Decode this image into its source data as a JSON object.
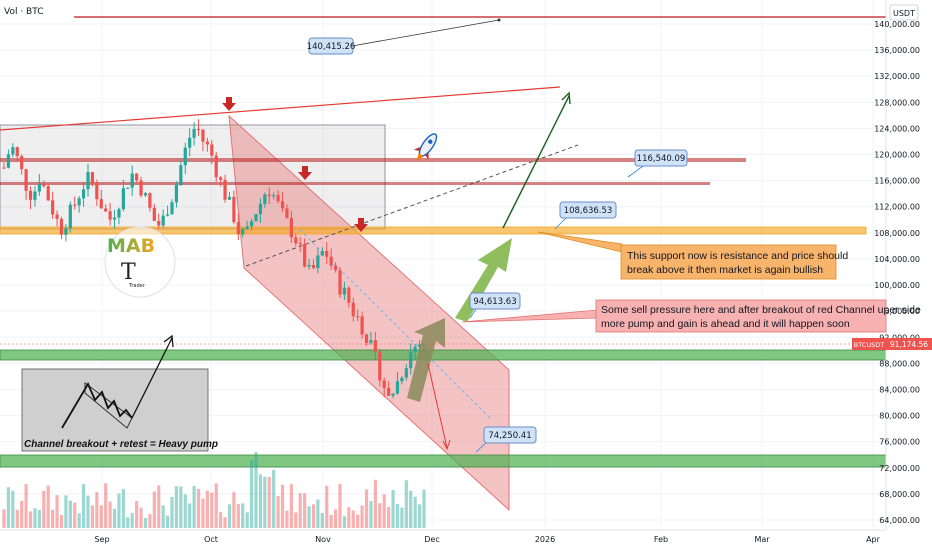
{
  "header": {
    "title": "Vol · BTC",
    "currency": "USDT"
  },
  "colors": {
    "up": "#26a69a",
    "down": "#ef5350",
    "channel": "#e57373",
    "support_band": "#f5a623",
    "green_band": "#4caf50",
    "resistance_line": "#b71c1c",
    "callout_blue": "#cfe2f7",
    "callout_orange": "#f8b46a",
    "callout_red": "#f7b1b1"
  },
  "chart_data": {
    "type": "candlestick",
    "symbol": "BTCUSDT",
    "last_price": "91,174.56",
    "ylim": [
      64000,
      142000
    ],
    "y_ticks": [
      140000,
      136000,
      132000,
      128000,
      124000,
      120000,
      116000,
      112000,
      108000,
      104000,
      100000,
      96000,
      92000,
      88000,
      84000,
      80000,
      76000,
      72000,
      68000,
      64000
    ],
    "y_tick_labels": [
      "140,000.00",
      "136,000.00",
      "132,000.00",
      "128,000.00",
      "124,000.00",
      "120,000.00",
      "116,000.00",
      "112,000.00",
      "108,000.00",
      "104,000.00",
      "100,000.00",
      "96,000.00",
      "92,000.00",
      "88,000.00",
      "84,000.00",
      "80,000.00",
      "76,000.00",
      "72,000.00",
      "68,000.00",
      "64,000.00"
    ],
    "x_labels": [
      "Sep",
      "Oct",
      "Nov",
      "Dec",
      "2026",
      "Feb",
      "Mar",
      "Apr"
    ],
    "level_labels": [
      "140,415.26",
      "116,540.09",
      "108,636.53",
      "94,613.63",
      "74,250.41"
    ],
    "close_path": [
      118000,
      121500,
      119000,
      115500,
      113500,
      116500,
      114000,
      111000,
      108500,
      110500,
      112500,
      115000,
      116500,
      114000,
      111500,
      110000,
      112500,
      115000,
      117000,
      115500,
      113000,
      110000,
      109000,
      112000,
      114500,
      119000,
      122500,
      124500,
      122000,
      120500,
      117000,
      114000,
      111500,
      108000,
      107500,
      110500,
      112500,
      115000,
      113500,
      111000,
      109000,
      107000,
      104000,
      101500,
      103500,
      105500,
      103000,
      100000,
      98500,
      96000,
      94500,
      92000,
      89000,
      86000,
      82500,
      84500,
      87000,
      89500,
      91000,
      91174
    ]
  },
  "annotations": {
    "callout_support": {
      "line1": "This support now is resistance and price should",
      "line2": "break above it then market is again bullish"
    },
    "callout_sell": {
      "line1": "Some sell pressure here and after breakout of red Channel uper side",
      "line2": "more pump and gain is ahead and it will happen soon"
    },
    "inset_caption": "Channel breakout + retest = Heavy pump",
    "logo_letters": "MAB",
    "logo_name": "Trader"
  }
}
